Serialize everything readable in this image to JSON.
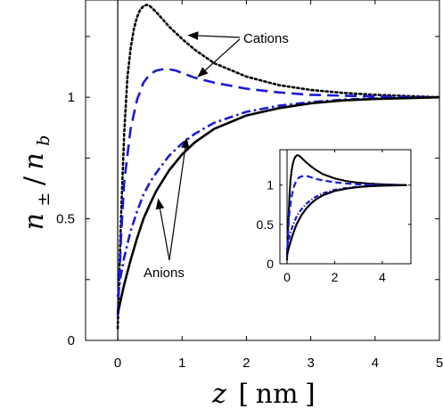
{
  "chart_data": [
    {
      "type": "line",
      "xlabel": {
        "var": "z",
        "open": "[",
        "unit": "nm",
        "close": "]"
      },
      "ylabel": {
        "n": "n",
        "pm": "±",
        "slash": "/",
        "b": "b"
      },
      "xlim": [
        -0.5,
        5
      ],
      "ylim": [
        0,
        1.4
      ],
      "x_ticks": [
        0,
        1,
        2,
        3,
        4,
        5
      ],
      "x_tick_labels": [
        "0",
        "1",
        "2",
        "3",
        "4",
        "5"
      ],
      "y_ticks": [
        0,
        0.5,
        1
      ],
      "y_tick_labels": [
        "0",
        "0.5",
        "1"
      ],
      "grid": false,
      "vertical_line_x": 0,
      "series": [
        {
          "style": "dotted",
          "color": "#000000",
          "group": "cations",
          "points": [
            [
              0.0,
              0.05
            ],
            [
              0.05,
              0.5
            ],
            [
              0.1,
              0.85
            ],
            [
              0.15,
              1.08
            ],
            [
              0.2,
              1.2
            ],
            [
              0.25,
              1.28
            ],
            [
              0.3,
              1.33
            ],
            [
              0.35,
              1.36
            ],
            [
              0.4,
              1.375
            ],
            [
              0.45,
              1.38
            ],
            [
              0.5,
              1.375
            ],
            [
              0.6,
              1.35
            ],
            [
              0.7,
              1.32
            ],
            [
              0.8,
              1.29
            ],
            [
              1.0,
              1.24
            ],
            [
              1.2,
              1.195
            ],
            [
              1.5,
              1.14
            ],
            [
              2.0,
              1.085
            ],
            [
              2.5,
              1.05
            ],
            [
              3.0,
              1.03
            ],
            [
              3.5,
              1.018
            ],
            [
              4.0,
              1.01
            ],
            [
              5.0,
              1.0
            ]
          ]
        },
        {
          "style": "dashed",
          "color": "#1a1ad6",
          "group": "cations",
          "points": [
            [
              0.0,
              0.1
            ],
            [
              0.05,
              0.42
            ],
            [
              0.1,
              0.65
            ],
            [
              0.2,
              0.87
            ],
            [
              0.3,
              0.99
            ],
            [
              0.4,
              1.06
            ],
            [
              0.5,
              1.095
            ],
            [
              0.6,
              1.11
            ],
            [
              0.7,
              1.115
            ],
            [
              0.8,
              1.115
            ],
            [
              0.9,
              1.11
            ],
            [
              1.0,
              1.1
            ],
            [
              1.2,
              1.08
            ],
            [
              1.5,
              1.06
            ],
            [
              2.0,
              1.035
            ],
            [
              2.5,
              1.02
            ],
            [
              3.0,
              1.01
            ],
            [
              4.0,
              1.003
            ],
            [
              5.0,
              1.0
            ]
          ]
        },
        {
          "style": "dashdot",
          "color": "#1a1ad6",
          "group": "anions",
          "points": [
            [
              0.0,
              0.18
            ],
            [
              0.05,
              0.27
            ],
            [
              0.1,
              0.34
            ],
            [
              0.2,
              0.45
            ],
            [
              0.3,
              0.53
            ],
            [
              0.4,
              0.6
            ],
            [
              0.5,
              0.65
            ],
            [
              0.6,
              0.69
            ],
            [
              0.8,
              0.76
            ],
            [
              1.0,
              0.81
            ],
            [
              1.2,
              0.85
            ],
            [
              1.5,
              0.895
            ],
            [
              2.0,
              0.94
            ],
            [
              2.5,
              0.965
            ],
            [
              3.0,
              0.98
            ],
            [
              3.5,
              0.99
            ],
            [
              4.0,
              0.995
            ],
            [
              5.0,
              1.0
            ]
          ]
        },
        {
          "style": "solid",
          "color": "#000000",
          "group": "anions",
          "points": [
            [
              0.0,
              0.11
            ],
            [
              0.05,
              0.17
            ],
            [
              0.1,
              0.23
            ],
            [
              0.2,
              0.33
            ],
            [
              0.3,
              0.42
            ],
            [
              0.4,
              0.5
            ],
            [
              0.5,
              0.56
            ],
            [
              0.6,
              0.615
            ],
            [
              0.8,
              0.7
            ],
            [
              1.0,
              0.765
            ],
            [
              1.2,
              0.815
            ],
            [
              1.5,
              0.87
            ],
            [
              2.0,
              0.925
            ],
            [
              2.5,
              0.955
            ],
            [
              3.0,
              0.975
            ],
            [
              3.5,
              0.987
            ],
            [
              4.0,
              0.993
            ],
            [
              5.0,
              1.0
            ]
          ]
        }
      ],
      "annotations": [
        {
          "text": "Cations"
        },
        {
          "text": "Anions"
        }
      ]
    },
    {
      "type": "line",
      "role": "inset",
      "xlim": [
        -0.3,
        5.2
      ],
      "ylim": [
        0,
        1.45
      ],
      "x_ticks": [
        0,
        2,
        4
      ],
      "x_tick_labels": [
        "0",
        "2",
        "4"
      ],
      "y_ticks": [
        0,
        0.5,
        1
      ],
      "y_tick_labels": [
        "0",
        "0.5",
        "1"
      ],
      "grid": false,
      "vertical_line_x": 0
    }
  ]
}
